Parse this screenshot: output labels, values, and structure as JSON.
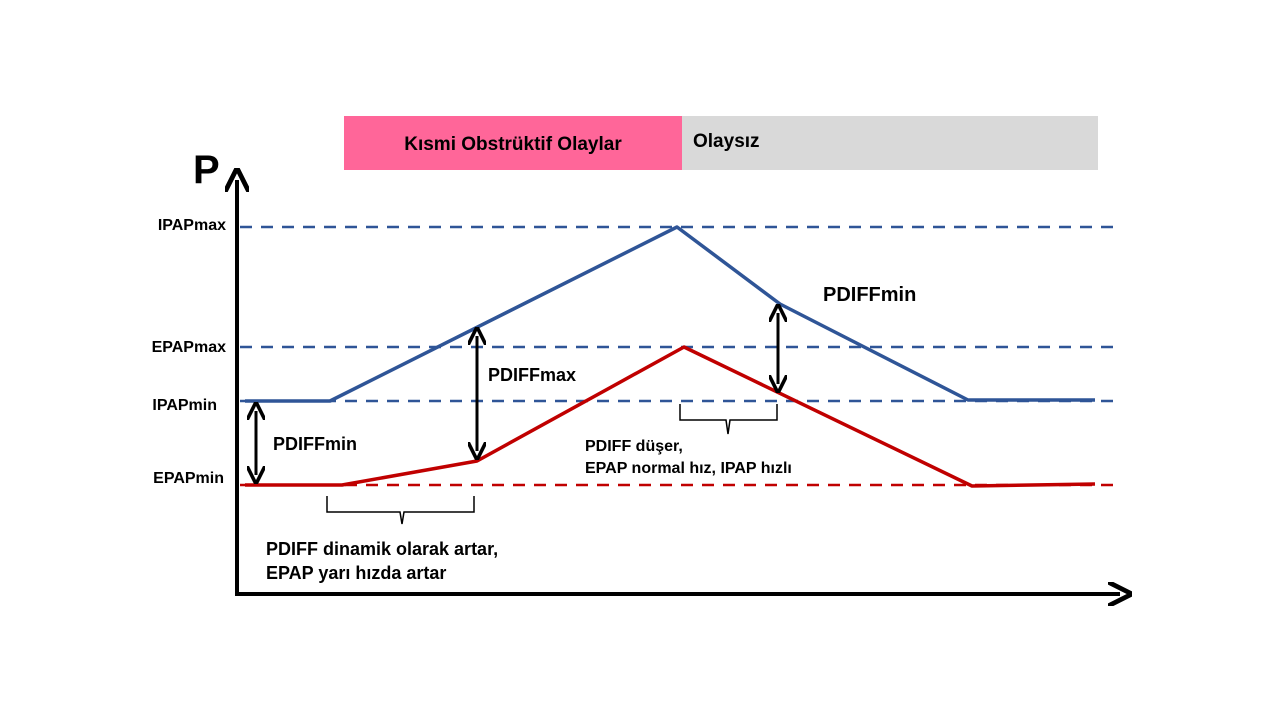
{
  "banner": {
    "left_label": "Kısmi Obstrüktif Olaylar",
    "left_color": "#ff6699",
    "right_label": "Olaysız",
    "right_color": "#d9d9d9"
  },
  "axis": {
    "y_label": "P"
  },
  "levels": {
    "ipap_max": "IPAPmax",
    "epap_max": "EPAPmax",
    "ipap_min": "IPAPmin",
    "epap_min": "EPAPmin"
  },
  "labels": {
    "pdiff_min_left": "PDIFFmin",
    "pdiff_max": "PDIFFmax",
    "pdiff_min_right": "PDIFFmin",
    "note_right_line1": "PDIFF düşer,",
    "note_right_line2": "EPAP normal hız, IPAP hızlı",
    "note_left_line1": "PDIFF dinamik olarak artar,",
    "note_left_line2": "EPAP yarı hızda artar"
  },
  "colors": {
    "ipap_line": "#2f5597",
    "epap_line": "#c00000",
    "axis": "#000000"
  }
}
